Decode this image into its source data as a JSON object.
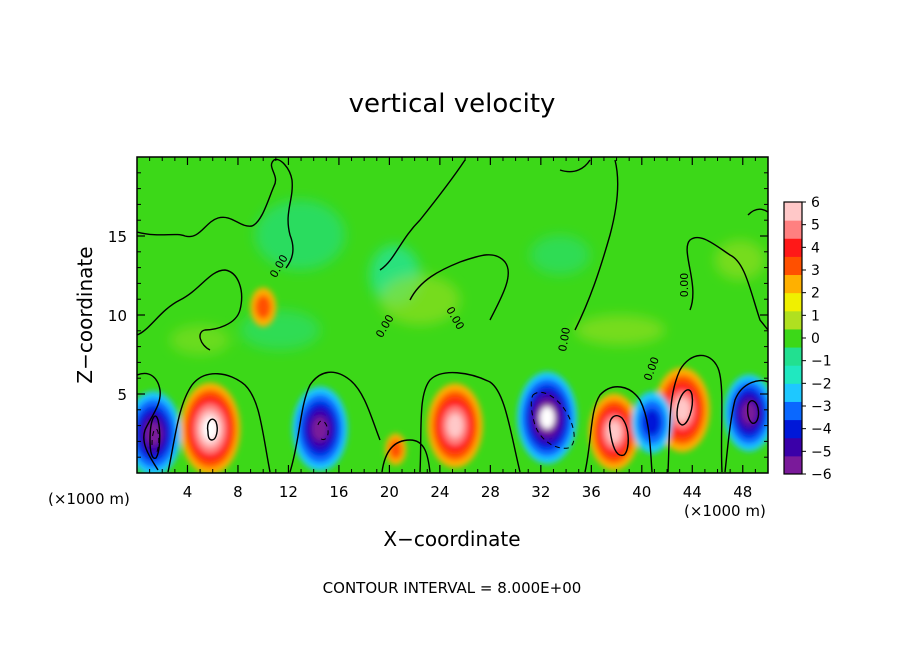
{
  "chart_data": {
    "type": "heatmap",
    "title": "vertical velocity",
    "xlabel": "X−coordinate",
    "ylabel": "Z−coordinate",
    "x_unit_left": "(×1000 m)",
    "x_unit_right": "(×1000 m)",
    "footer": "CONTOUR INTERVAL = 8.000E+00",
    "xlim": [
      0,
      50
    ],
    "ylim": [
      0,
      20
    ],
    "x_ticks": [
      4,
      8,
      12,
      16,
      20,
      24,
      28,
      32,
      36,
      40,
      44,
      48
    ],
    "x_tick_labels": [
      "4",
      "8",
      "12",
      "16",
      "20",
      "24",
      "28",
      "32",
      "36",
      "40",
      "44",
      "48"
    ],
    "y_ticks": [
      5,
      10,
      15
    ],
    "y_tick_labels": [
      "5",
      "10",
      "15"
    ],
    "colorbar": {
      "min": -6,
      "max": 6,
      "tick_values": [
        6,
        5,
        4,
        3,
        2,
        1,
        0,
        -1,
        -2,
        -3,
        -4,
        -5,
        -6
      ],
      "tick_labels": [
        "6",
        "5",
        "4",
        "3",
        "2",
        "1",
        "0",
        "−1",
        "−2",
        "−3",
        "−4",
        "−5",
        "−6"
      ],
      "colors": [
        "#7a1a9a",
        "#3a00a8",
        "#0018d8",
        "#0a68ff",
        "#1ec8ff",
        "#20e8c0",
        "#22e090",
        "#3cd818",
        "#b0e020",
        "#f0f000",
        "#ffb000",
        "#ff5000",
        "#ff1818",
        "#ff8080",
        "#ffc8c8"
      ]
    },
    "contour_label": "0.00",
    "updrafts": [
      {
        "x": 5.8,
        "z": 2.8,
        "peak": 18
      },
      {
        "x": 10.0,
        "z": 10.5,
        "peak": 4
      },
      {
        "x": 20.5,
        "z": 1.5,
        "peak": 2
      },
      {
        "x": 25.2,
        "z": 3.0,
        "peak": 16
      },
      {
        "x": 37.8,
        "z": 2.6,
        "peak": 14
      },
      {
        "x": 43.2,
        "z": 4.0,
        "peak": 16
      }
    ],
    "downdrafts": [
      {
        "x": 1.3,
        "z": 2.5,
        "peak": -16
      },
      {
        "x": 14.5,
        "z": 2.8,
        "peak": -16
      },
      {
        "x": 32.5,
        "z": 3.5,
        "peak": -18
      },
      {
        "x": 40.8,
        "z": 3.2,
        "peak": -10
      },
      {
        "x": 48.5,
        "z": 3.8,
        "peak": -14
      }
    ]
  }
}
